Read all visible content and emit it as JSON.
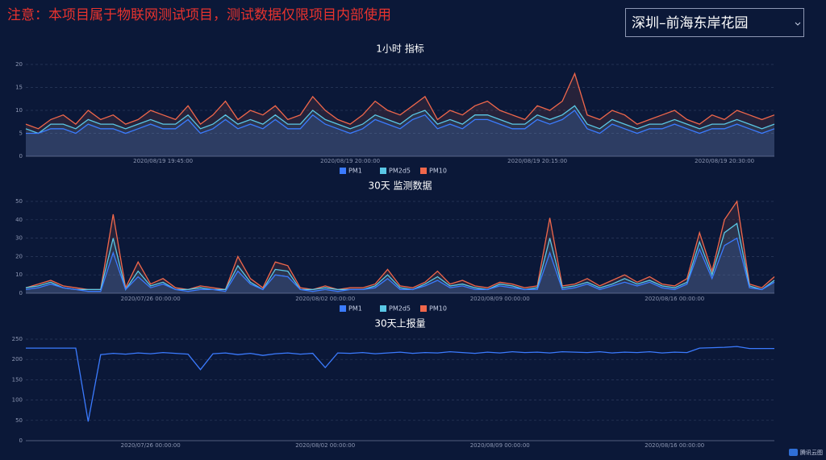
{
  "header": {
    "notice": "注意：本项目属于物联网测试项目，测试数据仅限项目内部使用",
    "location": "深圳–前海东岸花园",
    "logo": "腾讯云图"
  },
  "chart_data": [
    {
      "type": "line",
      "title": "1小时 指标",
      "area": true,
      "grid": true,
      "legend": "bottom",
      "categories": [
        null,
        null,
        null,
        null,
        null,
        null,
        null,
        null,
        null,
        null,
        null,
        "2020/08/19 19:45:00",
        null,
        null,
        null,
        null,
        null,
        null,
        null,
        null,
        null,
        null,
        null,
        null,
        null,
        null,
        "2020/08/19 20:00:00",
        null,
        null,
        null,
        null,
        null,
        null,
        null,
        null,
        null,
        null,
        null,
        null,
        null,
        null,
        "2020/08/19 20:15:00",
        null,
        null,
        null,
        null,
        null,
        null,
        null,
        null,
        null,
        null,
        null,
        null,
        null,
        null,
        "2020/08/19 20:30:00",
        null,
        null,
        null,
        null
      ],
      "ylim": [
        0,
        20
      ],
      "yticks": [
        0,
        5,
        10,
        15,
        20
      ],
      "series": [
        {
          "name": "PM1",
          "color": "#3b7bff",
          "values": [
            5,
            5,
            6,
            6,
            5,
            7,
            6,
            6,
            5,
            6,
            7,
            6,
            6,
            8,
            5,
            6,
            8,
            6,
            7,
            6,
            8,
            6,
            6,
            9,
            7,
            6,
            5,
            6,
            8,
            7,
            6,
            8,
            9,
            6,
            7,
            6,
            8,
            8,
            7,
            6,
            6,
            8,
            7,
            8,
            10,
            6,
            5,
            7,
            6,
            5,
            6,
            6,
            7,
            6,
            5,
            6,
            6,
            7,
            6,
            5,
            6
          ]
        },
        {
          "name": "PM2d5",
          "color": "#5ac8e6",
          "values": [
            6,
            5,
            7,
            7,
            6,
            8,
            7,
            7,
            6,
            7,
            8,
            7,
            7,
            9,
            6,
            7,
            9,
            7,
            8,
            7,
            9,
            7,
            7,
            10,
            8,
            7,
            6,
            7,
            9,
            8,
            7,
            9,
            10,
            7,
            8,
            7,
            9,
            9,
            8,
            7,
            7,
            9,
            8,
            9,
            11,
            7,
            6,
            8,
            7,
            6,
            7,
            7,
            8,
            7,
            6,
            7,
            7,
            8,
            7,
            6,
            7
          ]
        },
        {
          "name": "PM10",
          "color": "#f0674b",
          "values": [
            7,
            6,
            8,
            9,
            7,
            10,
            8,
            9,
            7,
            8,
            10,
            9,
            8,
            11,
            7,
            9,
            12,
            8,
            10,
            9,
            11,
            8,
            9,
            13,
            10,
            8,
            7,
            9,
            12,
            10,
            9,
            11,
            13,
            8,
            10,
            9,
            11,
            12,
            10,
            9,
            8,
            11,
            10,
            12,
            18,
            9,
            8,
            10,
            9,
            7,
            8,
            9,
            10,
            8,
            7,
            9,
            8,
            10,
            9,
            8,
            9
          ]
        }
      ]
    },
    {
      "type": "line",
      "title": "30天 监测数据",
      "area": true,
      "grid": true,
      "legend": "bottom",
      "categories": [
        null,
        null,
        null,
        null,
        null,
        null,
        null,
        null,
        null,
        null,
        "2020/07/26 00:00:00",
        null,
        null,
        null,
        null,
        null,
        null,
        null,
        null,
        null,
        null,
        null,
        null,
        null,
        "2020/08/02 00:00:00",
        null,
        null,
        null,
        null,
        null,
        null,
        null,
        null,
        null,
        null,
        null,
        null,
        null,
        "2020/08/09 00:00:00",
        null,
        null,
        null,
        null,
        null,
        null,
        null,
        null,
        null,
        null,
        null,
        null,
        null,
        "2020/08/16 00:00:00",
        null,
        null,
        null,
        null,
        null,
        null,
        null,
        null
      ],
      "ylim": [
        0,
        50
      ],
      "yticks": [
        0,
        10,
        20,
        30,
        40,
        50
      ],
      "series": [
        {
          "name": "PM1",
          "color": "#3b7bff",
          "values": [
            2,
            3,
            5,
            3,
            2,
            1,
            1,
            22,
            2,
            9,
            3,
            5,
            2,
            1,
            2,
            2,
            1,
            12,
            5,
            2,
            10,
            9,
            2,
            1,
            2,
            1,
            2,
            2,
            3,
            8,
            2,
            2,
            4,
            7,
            3,
            4,
            2,
            2,
            4,
            3,
            2,
            2,
            22,
            2,
            3,
            5,
            2,
            4,
            6,
            4,
            6,
            3,
            2,
            5,
            24,
            8,
            26,
            30,
            3,
            2,
            6
          ]
        },
        {
          "name": "PM2d5",
          "color": "#5ac8e6",
          "values": [
            3,
            4,
            6,
            3,
            2,
            2,
            2,
            30,
            2,
            12,
            4,
            6,
            2,
            2,
            3,
            2,
            2,
            15,
            6,
            2,
            13,
            12,
            2,
            2,
            3,
            2,
            2,
            2,
            4,
            10,
            3,
            2,
            5,
            9,
            4,
            5,
            3,
            2,
            5,
            4,
            2,
            3,
            30,
            3,
            4,
            6,
            3,
            5,
            8,
            5,
            7,
            4,
            3,
            6,
            28,
            10,
            33,
            38,
            4,
            2,
            7
          ]
        },
        {
          "name": "PM10",
          "color": "#f0674b",
          "values": [
            3,
            5,
            7,
            4,
            3,
            2,
            2,
            43,
            3,
            17,
            5,
            8,
            3,
            2,
            4,
            3,
            2,
            20,
            8,
            3,
            17,
            15,
            3,
            2,
            4,
            2,
            3,
            3,
            5,
            13,
            4,
            3,
            6,
            12,
            5,
            7,
            4,
            3,
            6,
            5,
            3,
            4,
            41,
            4,
            5,
            8,
            4,
            7,
            10,
            6,
            9,
            5,
            4,
            8,
            33,
            12,
            40,
            50,
            5,
            3,
            9
          ]
        }
      ]
    },
    {
      "type": "line",
      "title": "30天上报量",
      "area": false,
      "grid": true,
      "categories": [
        null,
        null,
        null,
        null,
        null,
        null,
        null,
        null,
        null,
        null,
        "2020/07/26 00:00:00",
        null,
        null,
        null,
        null,
        null,
        null,
        null,
        null,
        null,
        null,
        null,
        null,
        null,
        "2020/08/02 00:00:00",
        null,
        null,
        null,
        null,
        null,
        null,
        null,
        null,
        null,
        null,
        null,
        null,
        null,
        "2020/08/09 00:00:00",
        null,
        null,
        null,
        null,
        null,
        null,
        null,
        null,
        null,
        null,
        null,
        null,
        null,
        "2020/08/16 00:00:00",
        null,
        null,
        null,
        null,
        null,
        null,
        null,
        null
      ],
      "ylim": [
        0,
        250
      ],
      "yticks": [
        0,
        50,
        100,
        150,
        200,
        250
      ],
      "series": [
        {
          "color": "#3b7bff",
          "values": [
            228,
            228,
            228,
            228,
            228,
            47,
            212,
            215,
            213,
            216,
            214,
            217,
            215,
            213,
            175,
            214,
            216,
            212,
            215,
            210,
            214,
            216,
            213,
            215,
            180,
            216,
            215,
            217,
            214,
            216,
            218,
            215,
            217,
            216,
            219,
            217,
            215,
            218,
            216,
            219,
            217,
            218,
            216,
            219,
            218,
            217,
            219,
            216,
            218,
            217,
            219,
            216,
            218,
            217,
            228,
            229,
            230,
            232,
            227,
            227,
            227
          ]
        }
      ]
    }
  ]
}
